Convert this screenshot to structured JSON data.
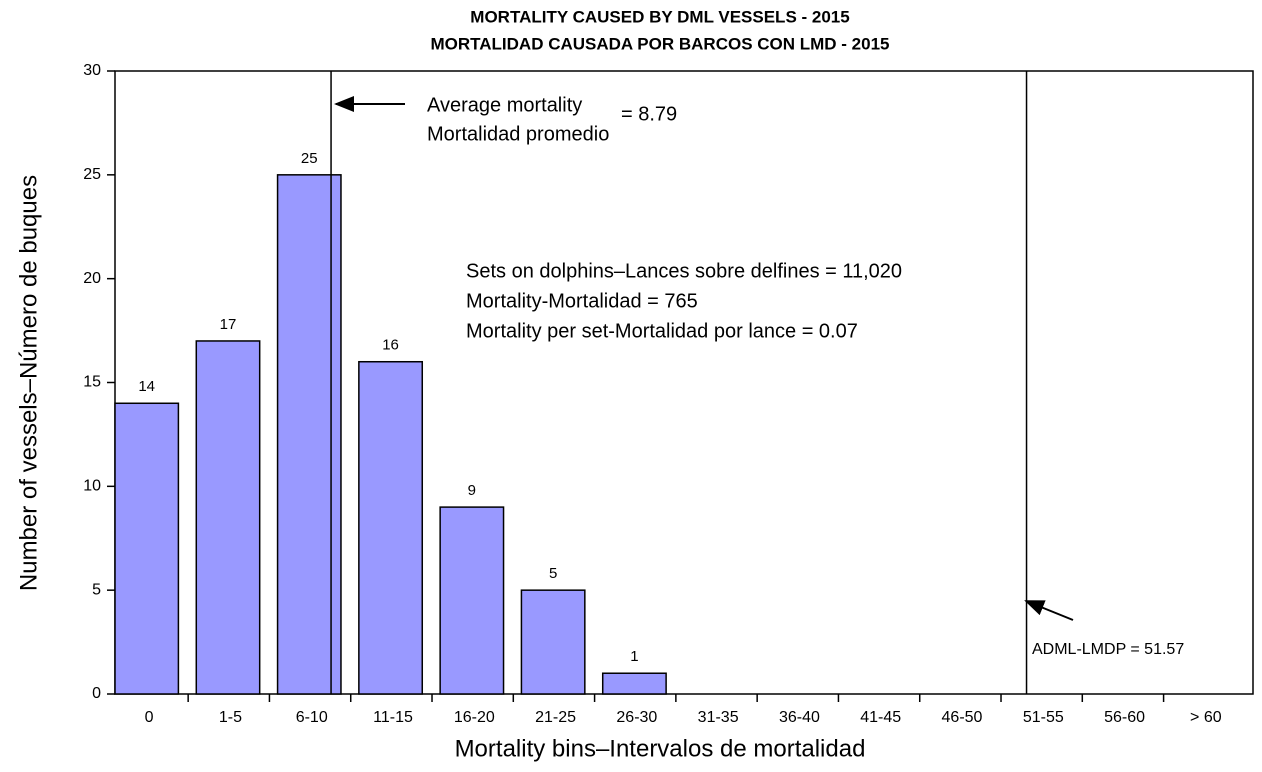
{
  "chart_data": {
    "type": "bar",
    "title": [
      "MORTALITY CAUSED BY DML VESSELS - 2015",
      "MORTALIDAD CAUSADA POR BARCOS CON LMD - 2015"
    ],
    "x_label": "Mortality bins–Intervalos de mortalidad",
    "y_label": "Number of vessels–Número de buques",
    "categories": [
      "0",
      "1-5",
      "6-10",
      "11-15",
      "16-20",
      "21-25",
      "26-30",
      "31-35",
      "36-40",
      "41-45",
      "46-50",
      "51-55",
      "56-60",
      "> 60"
    ],
    "values": [
      14,
      17,
      25,
      16,
      9,
      5,
      1,
      null,
      null,
      null,
      null,
      null,
      null,
      null
    ],
    "color": "#9999ff",
    "ylim": [
      0,
      30
    ],
    "yticks": [
      0,
      5,
      10,
      15,
      20,
      25,
      30
    ],
    "average": {
      "value": 8.79,
      "label": "= 8.79",
      "text": [
        "Average mortality",
        "Mortalidad promedio"
      ]
    },
    "adml": {
      "value": 51.57,
      "label": "ADML-LMDP = 51.57"
    },
    "stats": [
      "Sets on dolphins–Lances sobre delfines = 11,020",
      "Mortality-Mortalidad = 765",
      "Mortality per set-Mortalidad por lance = 0.07"
    ]
  }
}
